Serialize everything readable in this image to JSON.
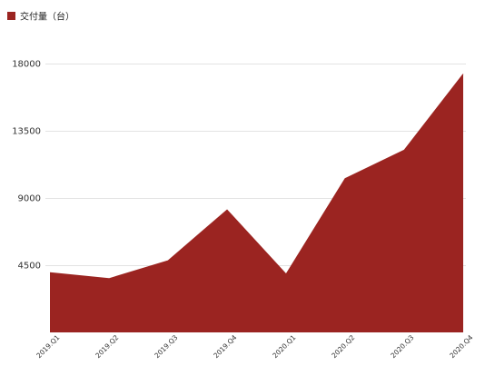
{
  "chart_data": {
    "type": "area",
    "categories": [
      "2019.Q1",
      "2019.Q2",
      "2019.Q3",
      "2019.Q4",
      "2020.Q1",
      "2020.Q2",
      "2020.Q3",
      "2020.Q4"
    ],
    "series": [
      {
        "name": "交付量（台）",
        "values": [
          4000,
          3600,
          4800,
          8200,
          3900,
          10300,
          12200,
          17300
        ],
        "color": "#9b2421"
      }
    ],
    "ylim": [
      0,
      18000
    ],
    "yticks": [
      4500,
      9000,
      13500,
      18000
    ],
    "grid": true,
    "legend": "top-left"
  }
}
